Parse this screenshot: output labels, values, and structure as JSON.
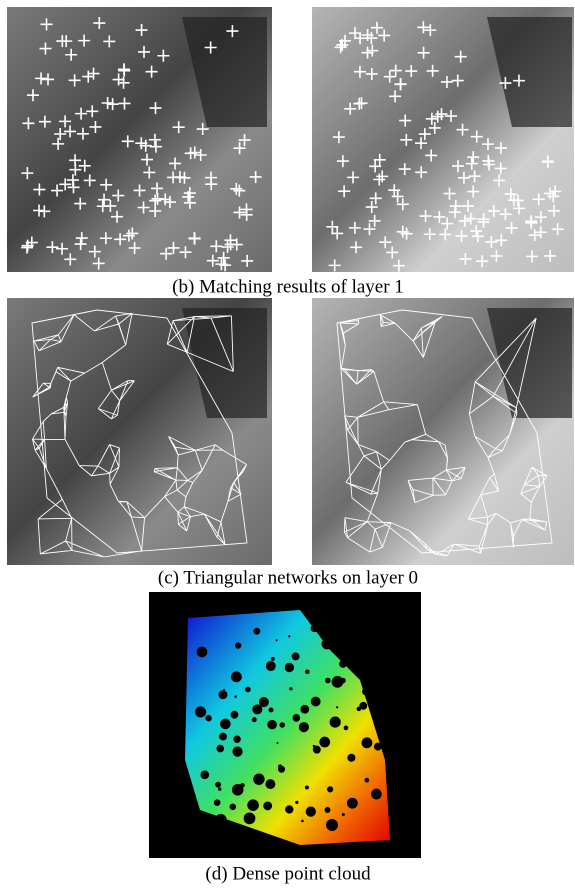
{
  "figure": {
    "captions": [
      "(b) Matching results of layer 1",
      "(c) Triangular networks on layer 0",
      "(d) Dense point cloud"
    ]
  }
}
